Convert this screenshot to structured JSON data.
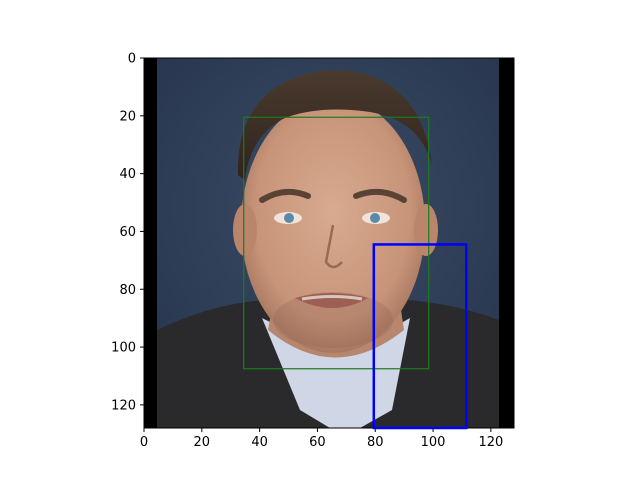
{
  "figure": {
    "type": "image-with-boxes",
    "x_ticks": [
      0,
      20,
      40,
      60,
      80,
      100,
      120
    ],
    "y_ticks": [
      0,
      20,
      40,
      60,
      80,
      100,
      120
    ],
    "x_range": [
      0,
      128
    ],
    "y_range": [
      0,
      128
    ],
    "y_inverted": true,
    "boxes": [
      {
        "color": "#1e7a1e",
        "x0": 34.5,
        "y0": 20.5,
        "x1": 98.5,
        "y1": 107.5
      },
      {
        "color": "#0000ff",
        "x0": 79.5,
        "y0": 64.5,
        "x1": 111.5,
        "y1": 128
      }
    ],
    "image": {
      "subject": "portrait of a man in a dark suit",
      "background_color": "#2e3e56",
      "side_bar_color": "#000000"
    }
  }
}
